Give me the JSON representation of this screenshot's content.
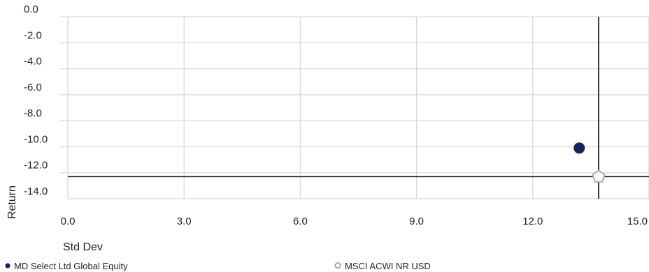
{
  "chart_data": {
    "type": "scatter",
    "xlabel": "Std Dev",
    "ylabel": "Return",
    "xlim": [
      0,
      15
    ],
    "ylim": [
      -14,
      0
    ],
    "x_ticks": [
      "0.0",
      "3.0",
      "6.0",
      "9.0",
      "12.0",
      "15.0"
    ],
    "y_ticks": [
      "0.0",
      "-2.0",
      "-4.0",
      "-6.0",
      "-8.0",
      "-10.0",
      "-12.0",
      "-14.0"
    ],
    "grid": true,
    "series": [
      {
        "name": "MD Select Ltd Global Equity",
        "x": 13.2,
        "y": -10.1,
        "marker": "circle",
        "color": "#14245a"
      },
      {
        "name": "MSCI ACWI NR USD",
        "x": 13.7,
        "y": -12.3,
        "marker": "pentagon",
        "color": "#aaaaaa"
      }
    ],
    "reference_lines": {
      "x": 13.7,
      "y": -12.3
    },
    "legend": "bottom"
  }
}
